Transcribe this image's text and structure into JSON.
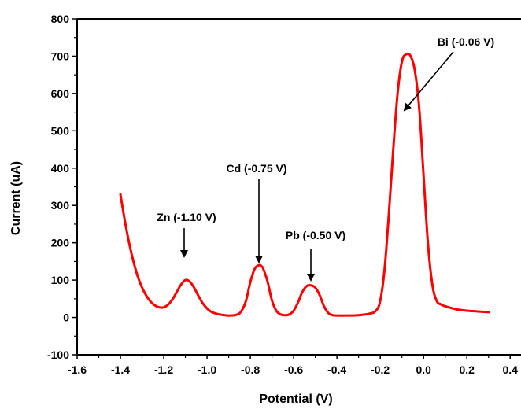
{
  "chart_data": {
    "type": "line",
    "title": "",
    "xlabel": "Potential (V)",
    "ylabel": "Current (uA)",
    "xlim": [
      -1.6,
      0.45
    ],
    "ylim": [
      -100,
      800
    ],
    "xticks": [
      "-1.6",
      "-1.4",
      "-1.2",
      "-1.0",
      "-0.8",
      "-0.6",
      "-0.4",
      "-0.2",
      "0.0",
      "0.2",
      "0.4"
    ],
    "yticks": [
      "-100",
      "0",
      "100",
      "200",
      "300",
      "400",
      "500",
      "600",
      "700",
      "800"
    ],
    "grid": false,
    "legend": "none",
    "series": [
      {
        "color": "#ff0000",
        "x": [
          -1.4,
          -1.38,
          -1.36,
          -1.34,
          -1.32,
          -1.3,
          -1.28,
          -1.26,
          -1.24,
          -1.22,
          -1.2,
          -1.18,
          -1.16,
          -1.14,
          -1.12,
          -1.1,
          -1.08,
          -1.06,
          -1.04,
          -1.02,
          -1.0,
          -0.98,
          -0.95,
          -0.92,
          -0.89,
          -0.86,
          -0.84,
          -0.82,
          -0.8,
          -0.78,
          -0.76,
          -0.75,
          -0.74,
          -0.72,
          -0.7,
          -0.68,
          -0.66,
          -0.64,
          -0.62,
          -0.6,
          -0.58,
          -0.56,
          -0.54,
          -0.52,
          -0.5,
          -0.48,
          -0.46,
          -0.44,
          -0.42,
          -0.4,
          -0.35,
          -0.3,
          -0.25,
          -0.22,
          -0.2,
          -0.18,
          -0.16,
          -0.14,
          -0.12,
          -0.1,
          -0.08,
          -0.06,
          -0.04,
          -0.02,
          0.0,
          0.02,
          0.04,
          0.06,
          0.08,
          0.1,
          0.15,
          0.2,
          0.25,
          0.3
        ],
        "y": [
          330,
          260,
          200,
          150,
          110,
          80,
          58,
          42,
          32,
          27,
          27,
          34,
          48,
          68,
          88,
          100,
          96,
          80,
          58,
          38,
          24,
          15,
          9,
          6,
          5,
          8,
          18,
          45,
          95,
          130,
          140,
          138,
          130,
          95,
          45,
          18,
          8,
          6,
          8,
          18,
          40,
          68,
          84,
          86,
          80,
          60,
          30,
          12,
          6,
          5,
          5,
          6,
          10,
          18,
          45,
          130,
          280,
          450,
          600,
          685,
          705,
          700,
          660,
          560,
          380,
          200,
          90,
          45,
          35,
          30,
          22,
          18,
          16,
          14
        ]
      }
    ],
    "annotations": [
      {
        "text": "Zn (-1.10 V)",
        "x": -1.1,
        "y": 100
      },
      {
        "text": "Cd (-0.75 V)",
        "x": -0.75,
        "y": 140
      },
      {
        "text": "Pb (-0.50 V)",
        "x": -0.5,
        "y": 86
      },
      {
        "text": "Bi (-0.06 V)",
        "x": -0.06,
        "y": 700
      }
    ]
  }
}
